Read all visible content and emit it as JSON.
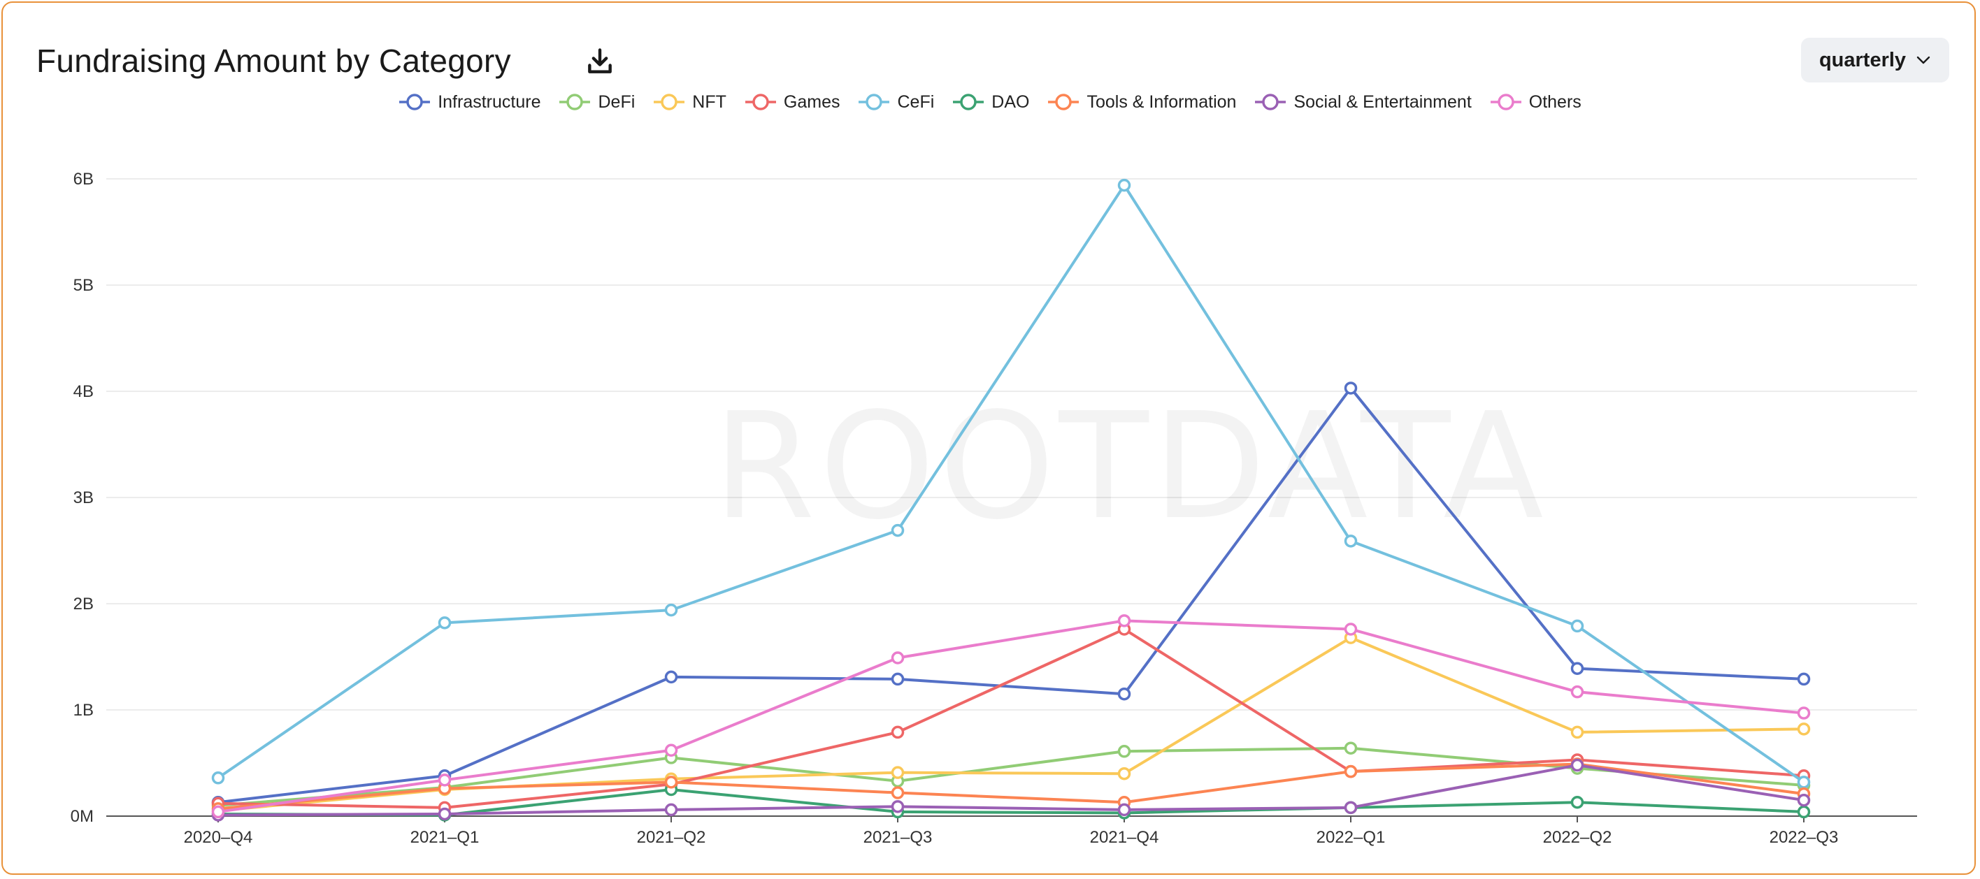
{
  "header": {
    "title": "Fundraising Amount by Category",
    "download_icon": "download-icon",
    "period_select": {
      "selected": "quarterly",
      "icon": "chevron-down-icon"
    }
  },
  "watermark": "ROOTDATA",
  "chart_data": {
    "type": "line",
    "title": "Fundraising Amount by Category",
    "xlabel": "",
    "ylabel": "",
    "categories": [
      "2020–Q4",
      "2021–Q1",
      "2021–Q2",
      "2021–Q3",
      "2021–Q4",
      "2022–Q1",
      "2022–Q2",
      "2022–Q3"
    ],
    "y_ticks": [
      "0M",
      "1B",
      "2B",
      "3B",
      "4B",
      "5B",
      "6B"
    ],
    "y_unit": "B",
    "ylim": [
      0,
      6
    ],
    "grid": true,
    "legend_position": "top-center",
    "series": [
      {
        "name": "Infrastructure",
        "color": "#5470c6",
        "values": [
          0.13,
          0.38,
          1.31,
          1.29,
          1.15,
          4.03,
          1.39,
          1.29
        ]
      },
      {
        "name": "DeFi",
        "color": "#91cc75",
        "values": [
          0.1,
          0.27,
          0.55,
          0.33,
          0.61,
          0.64,
          0.45,
          0.29
        ]
      },
      {
        "name": "NFT",
        "color": "#fac858",
        "values": [
          0.05,
          0.25,
          0.35,
          0.41,
          0.4,
          1.68,
          0.79,
          0.82
        ]
      },
      {
        "name": "Games",
        "color": "#ee6666",
        "values": [
          0.12,
          0.08,
          0.3,
          0.79,
          1.76,
          0.42,
          0.53,
          0.38
        ]
      },
      {
        "name": "CeFi",
        "color": "#73c0de",
        "values": [
          0.36,
          1.82,
          1.94,
          2.69,
          5.94,
          2.59,
          1.79,
          0.32
        ]
      },
      {
        "name": "DAO",
        "color": "#3ba272",
        "values": [
          0.02,
          0.01,
          0.25,
          0.04,
          0.03,
          0.08,
          0.13,
          0.04
        ]
      },
      {
        "name": "Tools & Information",
        "color": "#fc8452",
        "values": [
          0.07,
          0.26,
          0.32,
          0.22,
          0.13,
          0.42,
          0.49,
          0.21
        ]
      },
      {
        "name": "Social & Entertainment",
        "color": "#9a60b4",
        "values": [
          0.01,
          0.02,
          0.06,
          0.09,
          0.06,
          0.08,
          0.48,
          0.15
        ]
      },
      {
        "name": "Others",
        "color": "#ea7ccc",
        "values": [
          0.04,
          0.34,
          0.62,
          1.49,
          1.84,
          1.76,
          1.17,
          0.97
        ]
      }
    ]
  }
}
